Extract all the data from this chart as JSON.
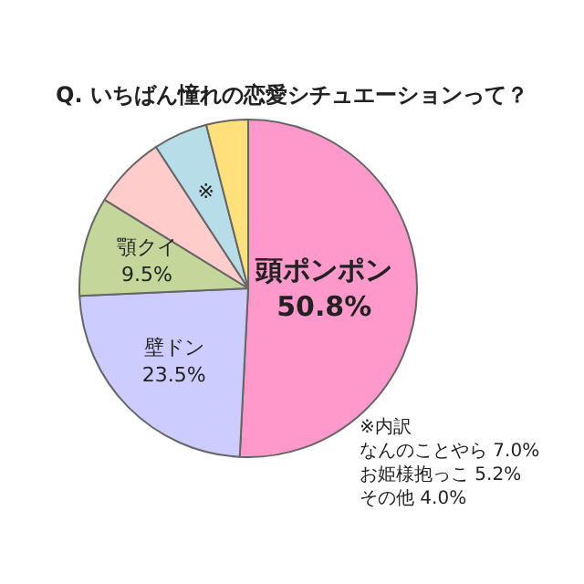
{
  "chart_data": {
    "type": "pie",
    "title": "Q. いちばん憧れの恋愛シチュエーションって？",
    "categories": [
      "頭ポンポン",
      "壁ドン",
      "顎クイ",
      null,
      "※",
      null
    ],
    "values": [
      50.8,
      23.5,
      9.5,
      7.0,
      5.2,
      4.0
    ],
    "colors": [
      "#ff99cc",
      "#ccccff",
      "#c4d79b",
      "#ffcccc",
      "#b7dee8",
      "#ffe07a"
    ],
    "value_labels": [
      "50.8%",
      "23.5%",
      "9.5%",
      null,
      null,
      null
    ],
    "legend": false,
    "annotations": [
      "※内訳",
      "なんのことやら 7.0%",
      "お姫様抱っこ 5.2%",
      "その他 4.0%"
    ]
  }
}
